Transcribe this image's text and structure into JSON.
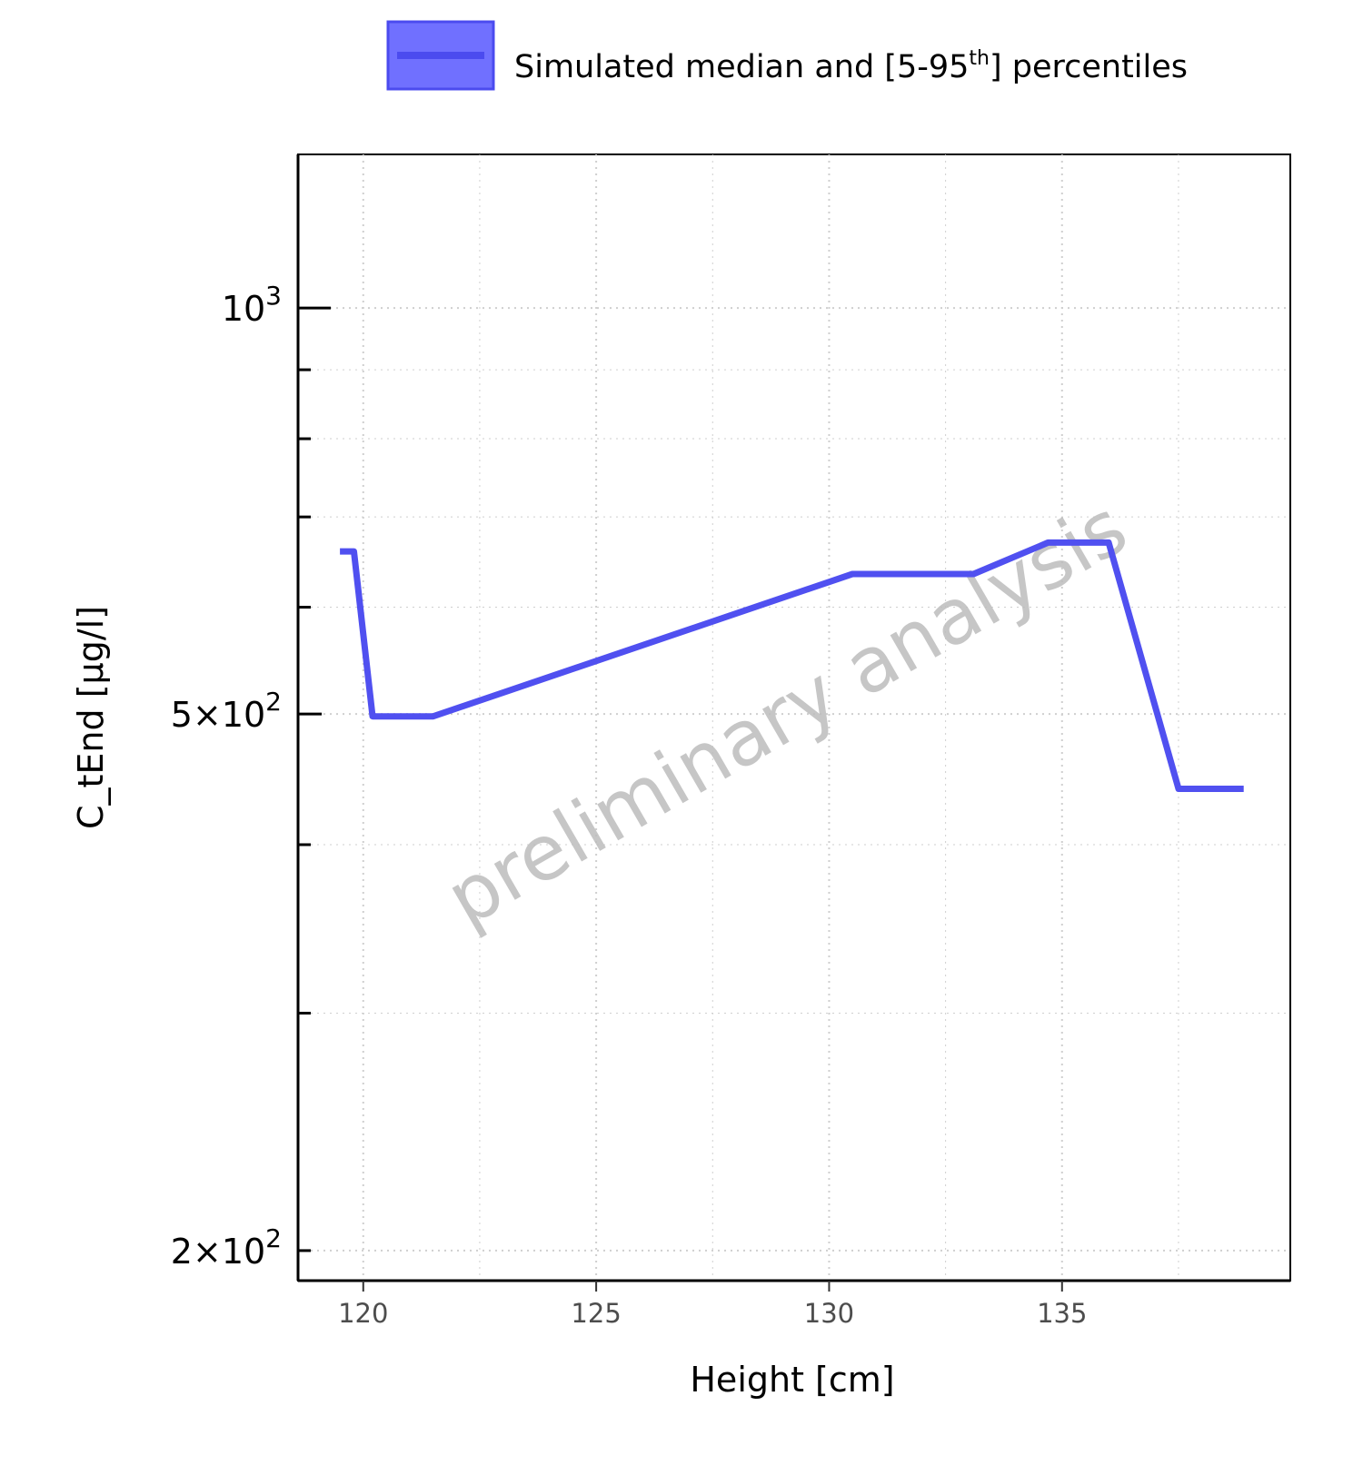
{
  "chart_data": {
    "type": "line",
    "xlabel": "Height [cm]",
    "ylabel": "C_tEnd [µg/l]",
    "xlim": [
      118.6,
      139.9
    ],
    "ylim": [
      190,
      1300
    ],
    "yscale": "log",
    "xticks": [
      120,
      125,
      130,
      135
    ],
    "xtick_labels": [
      "120",
      "125",
      "130",
      "135"
    ],
    "yticks": [
      {
        "value": 1000,
        "mantissa": "",
        "base": "10",
        "exp": "3"
      },
      {
        "value": 500,
        "mantissa": "5",
        "base": "10",
        "exp": "2"
      },
      {
        "value": 200,
        "mantissa": "2",
        "base": "10",
        "exp": "2"
      }
    ],
    "yminor_ticks": [
      300,
      400,
      600,
      700,
      800,
      900
    ],
    "grid": true,
    "legend": {
      "placement": "top",
      "label": "Simulated median and [5-95",
      "label_sup": "th",
      "label_end": "] percentiles"
    },
    "watermark": "preliminary analysis",
    "colors": {
      "series": "#5050f0",
      "ribbon_fill": "#7070ff",
      "ribbon_edge": "#4b4bef",
      "grid": "#cfcfcf"
    },
    "series": [
      {
        "x": [
          119.5,
          119.8,
          120.2,
          121.5,
          130.5,
          133.1,
          134.7,
          136.0,
          137.5,
          138.9
        ],
        "y": [
          660,
          660,
          498,
          498,
          635,
          635,
          670,
          670,
          440,
          440
        ]
      }
    ]
  }
}
